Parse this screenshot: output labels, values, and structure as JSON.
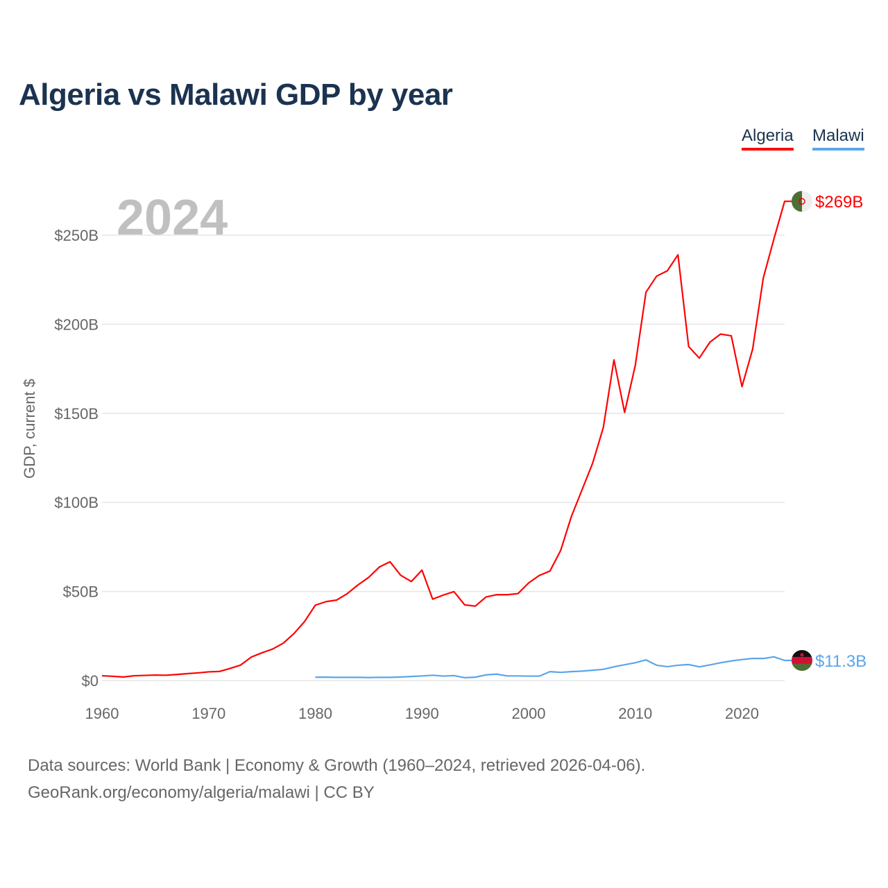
{
  "title": "Algeria vs Malawi GDP by year",
  "footer": {
    "line1": "Data sources: World Bank | Economy & Growth (1960–2024, retrieved 2026-04-06).",
    "line2": "GeoRank.org/economy/algeria/malawi | CC BY"
  },
  "chart_data": {
    "type": "line",
    "title": "Algeria vs Malawi GDP by year",
    "xlabel": "",
    "ylabel": "GDP, current $",
    "year_label": "2024",
    "xlim": [
      1960,
      2024
    ],
    "ylim": [
      0,
      270
    ],
    "x_ticks": [
      1960,
      1970,
      1980,
      1990,
      2000,
      2010,
      2020
    ],
    "y_ticks": [
      0,
      50,
      100,
      150,
      200,
      250
    ],
    "y_tick_labels": [
      "$0",
      "$50B",
      "$100B",
      "$150B",
      "$200B",
      "$250B"
    ],
    "grid": true,
    "legend_position": "top-right",
    "series": [
      {
        "name": "Algeria",
        "color": "#ff0000",
        "start_year": 1960,
        "end_label": "$269B",
        "values": [
          2.7,
          2.4,
          2.0,
          2.7,
          2.9,
          3.1,
          3.0,
          3.4,
          3.9,
          4.3,
          4.9,
          5.1,
          6.8,
          8.7,
          13.2,
          15.6,
          17.7,
          21.0,
          26.4,
          33.2,
          42.3,
          44.3,
          45.2,
          48.8,
          53.7,
          57.9,
          63.7,
          66.7,
          59.1,
          55.6,
          62.0,
          45.7,
          48.0,
          49.9,
          42.5,
          41.8,
          46.9,
          48.2,
          48.2,
          48.8,
          54.8,
          59.0,
          61.5,
          73.0,
          92.0,
          107.0,
          122.0,
          142.0,
          180.0,
          150.5,
          177.0,
          218.0,
          227.0,
          230.0,
          239.0,
          187.5,
          181.0,
          190.0,
          194.5,
          193.5,
          165.0,
          186.0,
          226.0,
          248.0,
          269.0
        ]
      },
      {
        "name": "Malawi",
        "color": "#5aa5ea",
        "start_year": 1980,
        "end_label": "$11.3B",
        "values": [
          1.9,
          1.9,
          1.8,
          1.8,
          1.8,
          1.7,
          1.8,
          1.8,
          2.0,
          2.3,
          2.6,
          3.0,
          2.5,
          2.8,
          1.6,
          1.9,
          3.2,
          3.6,
          2.6,
          2.6,
          2.5,
          2.5,
          5.0,
          4.6,
          5.0,
          5.3,
          5.8,
          6.3,
          7.7,
          8.9,
          10.0,
          11.6,
          8.6,
          7.8,
          8.6,
          9.0,
          7.7,
          8.8,
          10.0,
          11.0,
          11.8,
          12.4,
          12.4,
          13.3,
          11.3
        ]
      }
    ]
  }
}
